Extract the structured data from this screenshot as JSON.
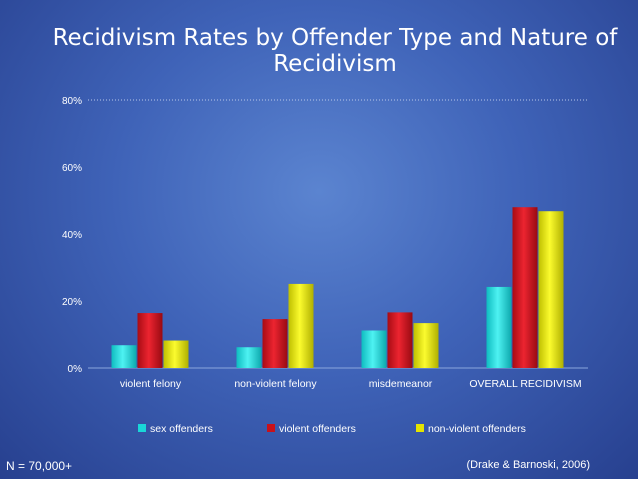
{
  "title": "Recidivism Rates by Offender Type and Nature of Recidivism",
  "footnote_left": "N = 70,000+",
  "footnote_right": "(Drake & Barnoski, 2006)",
  "chart_data": {
    "type": "bar",
    "title": "Recidivism Rates by Offender Type and Nature of Recidivism",
    "categories": [
      "violent felony",
      "non-violent felony",
      "misdemeanor",
      "OVERALL RECIDIVISM"
    ],
    "series": [
      {
        "name": "sex offenders",
        "values": [
          6.8,
          6.2,
          11.2,
          24.2
        ],
        "color": "#19d6d8"
      },
      {
        "name": "violent offenders",
        "values": [
          16.4,
          14.6,
          16.6,
          48.0
        ],
        "color": "#c8111b"
      },
      {
        "name": "non-violent offenders",
        "values": [
          8.2,
          25.1,
          13.4,
          46.8
        ],
        "color": "#e4e400"
      }
    ],
    "y_ticks": [
      "0%",
      "20%",
      "40%",
      "60%",
      "80%"
    ],
    "ylim": [
      0,
      80
    ],
    "xlabel": "",
    "ylabel": "",
    "grid": "dotted line at 80% only",
    "legend_position": "bottom"
  }
}
